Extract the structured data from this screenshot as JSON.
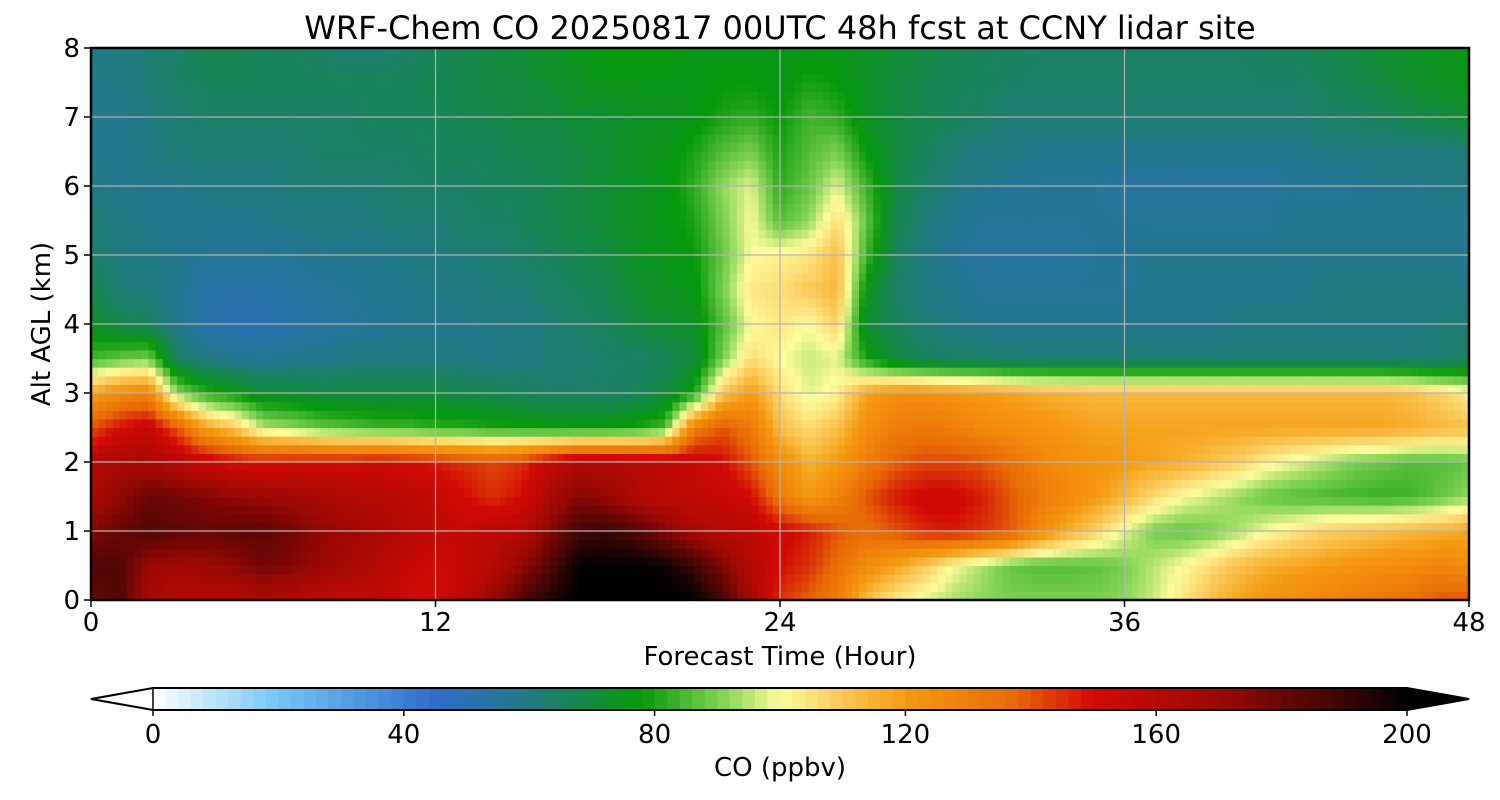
{
  "chart_data": {
    "type": "heatmap",
    "title": "WRF-Chem CO  20250817 00UTC 48h fcst at CCNY lidar site",
    "xlabel": "Forecast Time (Hour)",
    "ylabel": "Alt AGL (km)",
    "xlim": [
      0,
      48
    ],
    "ylim": [
      0,
      8
    ],
    "x_ticks": [
      "0",
      "12",
      "24",
      "36",
      "48"
    ],
    "y_ticks": [
      "0",
      "1",
      "2",
      "3",
      "4",
      "5",
      "6",
      "7",
      "8"
    ],
    "grid": true,
    "x_hours": [
      0,
      1,
      2,
      3,
      4,
      5,
      6,
      7,
      8,
      9,
      10,
      11,
      12,
      13,
      14,
      15,
      16,
      17,
      18,
      19,
      20,
      21,
      22,
      23,
      24,
      25,
      26,
      27,
      28,
      29,
      30,
      31,
      32,
      33,
      34,
      35,
      36,
      37,
      38,
      39,
      40,
      41,
      42,
      43,
      44,
      45,
      46,
      47,
      48
    ],
    "altitudes_km": [
      0,
      0.5,
      1,
      1.5,
      2,
      2.5,
      3,
      3.5,
      4,
      4.5,
      5,
      5.5,
      6,
      6.5,
      7,
      7.5,
      8
    ],
    "co_ppbv": [
      [
        180,
        185,
        165,
        160,
        160,
        160,
        162,
        160,
        158,
        156,
        155,
        152,
        150,
        158,
        170,
        185,
        195,
        200,
        200,
        200,
        200,
        200,
        188,
        165,
        145,
        138,
        130,
        112,
        104,
        98,
        94,
        92,
        90,
        90,
        90,
        90,
        92,
        96,
        104,
        112,
        118,
        122,
        125,
        128,
        130,
        132,
        135,
        140,
        140
      ],
      [
        185,
        185,
        170,
        168,
        170,
        172,
        178,
        175,
        170,
        165,
        160,
        155,
        152,
        155,
        160,
        172,
        185,
        200,
        200,
        200,
        198,
        190,
        175,
        160,
        150,
        145,
        135,
        125,
        118,
        110,
        100,
        94,
        88,
        86,
        86,
        87,
        90,
        95,
        100,
        106,
        112,
        116,
        118,
        120,
        122,
        124,
        125,
        128,
        125
      ],
      [
        175,
        180,
        185,
        182,
        180,
        182,
        182,
        178,
        172,
        168,
        165,
        160,
        156,
        155,
        158,
        160,
        175,
        188,
        190,
        185,
        175,
        165,
        160,
        158,
        152,
        148,
        140,
        135,
        140,
        146,
        148,
        145,
        140,
        126,
        116,
        108,
        98,
        90,
        88,
        90,
        94,
        100,
        104,
        108,
        110,
        112,
        114,
        115,
        118
      ],
      [
        165,
        172,
        180,
        178,
        175,
        172,
        170,
        168,
        165,
        162,
        160,
        158,
        155,
        150,
        145,
        150,
        165,
        175,
        170,
        162,
        158,
        155,
        155,
        150,
        132,
        120,
        128,
        140,
        148,
        152,
        152,
        148,
        140,
        132,
        126,
        120,
        114,
        106,
        100,
        96,
        92,
        88,
        86,
        85,
        84,
        83,
        84,
        88,
        92
      ],
      [
        160,
        165,
        165,
        160,
        155,
        150,
        148,
        150,
        150,
        150,
        152,
        150,
        148,
        145,
        142,
        145,
        155,
        162,
        162,
        160,
        158,
        155,
        150,
        140,
        125,
        115,
        120,
        130,
        138,
        142,
        142,
        140,
        135,
        128,
        124,
        122,
        120,
        118,
        116,
        112,
        108,
        102,
        98,
        94,
        90,
        88,
        86,
        86,
        88
      ],
      [
        140,
        150,
        155,
        140,
        118,
        110,
        95,
        92,
        88,
        86,
        84,
        84,
        82,
        82,
        80,
        80,
        78,
        78,
        78,
        80,
        85,
        130,
        140,
        132,
        112,
        106,
        112,
        124,
        130,
        132,
        130,
        126,
        124,
        122,
        120,
        118,
        118,
        118,
        118,
        118,
        118,
        118,
        118,
        118,
        118,
        118,
        116,
        114,
        112
      ],
      [
        118,
        125,
        128,
        92,
        82,
        78,
        72,
        72,
        70,
        70,
        70,
        70,
        70,
        68,
        68,
        66,
        64,
        64,
        64,
        66,
        70,
        80,
        110,
        120,
        106,
        98,
        102,
        118,
        124,
        124,
        122,
        120,
        118,
        116,
        115,
        114,
        114,
        114,
        114,
        114,
        114,
        114,
        114,
        114,
        114,
        114,
        112,
        108,
        102
      ],
      [
        84,
        88,
        90,
        65,
        60,
        58,
        56,
        58,
        58,
        60,
        60,
        60,
        60,
        60,
        58,
        60,
        62,
        62,
        64,
        64,
        66,
        70,
        90,
        106,
        100,
        96,
        98,
        80,
        70,
        66,
        64,
        64,
        62,
        62,
        62,
        62,
        62,
        62,
        62,
        62,
        62,
        62,
        62,
        62,
        62,
        62,
        62,
        62,
        65
      ],
      [
        74,
        68,
        66,
        58,
        52,
        50,
        50,
        52,
        54,
        55,
        56,
        58,
        58,
        58,
        60,
        60,
        62,
        64,
        66,
        70,
        72,
        74,
        86,
        100,
        104,
        100,
        108,
        72,
        66,
        62,
        60,
        58,
        58,
        58,
        58,
        58,
        58,
        58,
        58,
        58,
        60,
        60,
        60,
        60,
        60,
        60,
        60,
        62,
        62
      ],
      [
        68,
        62,
        60,
        58,
        52,
        52,
        52,
        54,
        55,
        56,
        58,
        58,
        60,
        60,
        62,
        62,
        64,
        66,
        68,
        72,
        74,
        76,
        90,
        104,
        106,
        110,
        114,
        76,
        64,
        60,
        58,
        56,
        56,
        56,
        56,
        56,
        56,
        58,
        58,
        58,
        58,
        58,
        58,
        60,
        60,
        60,
        60,
        60,
        60
      ],
      [
        64,
        60,
        60,
        58,
        56,
        56,
        56,
        56,
        58,
        58,
        58,
        60,
        60,
        62,
        62,
        64,
        66,
        68,
        70,
        74,
        76,
        78,
        88,
        100,
        102,
        104,
        112,
        84,
        66,
        60,
        56,
        54,
        54,
        54,
        54,
        56,
        56,
        58,
        58,
        58,
        58,
        58,
        58,
        58,
        58,
        58,
        58,
        58,
        58
      ],
      [
        62,
        60,
        58,
        58,
        58,
        58,
        58,
        60,
        60,
        60,
        62,
        62,
        62,
        64,
        64,
        66,
        68,
        70,
        72,
        74,
        76,
        80,
        90,
        100,
        86,
        92,
        106,
        88,
        68,
        62,
        58,
        56,
        56,
        56,
        56,
        56,
        56,
        56,
        56,
        56,
        56,
        56,
        58,
        58,
        58,
        58,
        58,
        58,
        58
      ],
      [
        60,
        58,
        58,
        58,
        60,
        60,
        60,
        62,
        62,
        62,
        62,
        64,
        64,
        64,
        66,
        66,
        68,
        70,
        72,
        74,
        76,
        82,
        92,
        98,
        82,
        88,
        98,
        84,
        70,
        64,
        60,
        58,
        56,
        56,
        56,
        56,
        54,
        54,
        54,
        54,
        54,
        54,
        56,
        56,
        56,
        58,
        58,
        60,
        60
      ],
      [
        58,
        58,
        60,
        62,
        62,
        62,
        62,
        62,
        64,
        64,
        64,
        64,
        66,
        66,
        66,
        68,
        68,
        70,
        72,
        74,
        76,
        80,
        86,
        90,
        80,
        86,
        90,
        78,
        70,
        66,
        62,
        60,
        60,
        58,
        58,
        58,
        58,
        58,
        58,
        58,
        58,
        58,
        58,
        60,
        60,
        60,
        60,
        60,
        62
      ],
      [
        58,
        58,
        60,
        62,
        64,
        64,
        64,
        64,
        64,
        64,
        66,
        66,
        66,
        68,
        68,
        70,
        70,
        72,
        72,
        74,
        74,
        76,
        80,
        82,
        78,
        84,
        82,
        74,
        70,
        68,
        66,
        64,
        62,
        62,
        62,
        62,
        62,
        62,
        62,
        62,
        62,
        62,
        62,
        64,
        64,
        66,
        68,
        70,
        72
      ],
      [
        58,
        60,
        62,
        64,
        66,
        66,
        66,
        66,
        66,
        66,
        66,
        66,
        68,
        68,
        70,
        70,
        72,
        74,
        76,
        76,
        76,
        76,
        78,
        78,
        76,
        80,
        78,
        74,
        70,
        68,
        66,
        66,
        64,
        64,
        64,
        64,
        64,
        64,
        64,
        64,
        64,
        64,
        64,
        66,
        68,
        70,
        72,
        74,
        76
      ],
      [
        60,
        60,
        62,
        64,
        68,
        68,
        66,
        66,
        64,
        62,
        62,
        64,
        66,
        68,
        70,
        72,
        74,
        76,
        78,
        78,
        78,
        76,
        76,
        76,
        76,
        76,
        76,
        74,
        72,
        70,
        68,
        66,
        66,
        64,
        64,
        64,
        64,
        64,
        64,
        64,
        64,
        66,
        66,
        68,
        70,
        72,
        74,
        76,
        76
      ]
    ],
    "colorbar": {
      "label": "CO  (ppbv)",
      "ticks": [
        "0",
        "40",
        "80",
        "120",
        "160",
        "200"
      ],
      "range": [
        0,
        200
      ],
      "extend": "both",
      "stops": [
        {
          "v": 0,
          "c": "#ffffff"
        },
        {
          "v": 20,
          "c": "#74c6f5"
        },
        {
          "v": 45,
          "c": "#2f6ccc"
        },
        {
          "v": 60,
          "c": "#217a82"
        },
        {
          "v": 78,
          "c": "#06990a"
        },
        {
          "v": 92,
          "c": "#8fd85a"
        },
        {
          "v": 100,
          "c": "#fffc9c"
        },
        {
          "v": 108,
          "c": "#fcd266"
        },
        {
          "v": 120,
          "c": "#f59a10"
        },
        {
          "v": 137,
          "c": "#e86a06"
        },
        {
          "v": 150,
          "c": "#d20a06"
        },
        {
          "v": 170,
          "c": "#9a0804"
        },
        {
          "v": 190,
          "c": "#380604"
        },
        {
          "v": 200,
          "c": "#000000"
        }
      ]
    }
  }
}
